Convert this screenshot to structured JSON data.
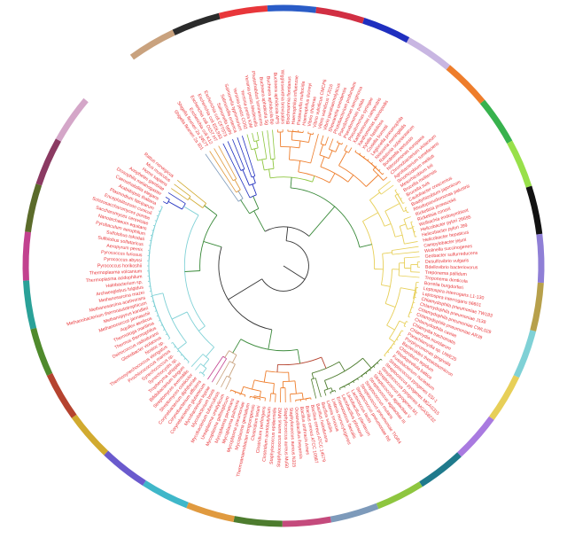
{
  "figure": {
    "type": "circular-phylogenetic-tree",
    "leaf_label_color": "#e8363a",
    "root_branch_color": "#333333",
    "leaves": [
      "Shigella flexneri 2a 301",
      "Shigella flexneri 2a 2457T",
      "Escherichia coli K12",
      "Escherichia coli O157:H7",
      "Escherichia coli EDL933",
      "Escherichia coli CFT073",
      "Salmonella typhi",
      "Salmonella enterica",
      "Salmonella typhimurium",
      "Yersinia pestis CO92",
      "Yersinia pestis KIM",
      "Yersinia pestis Medievalis",
      "Photorhabdus luminescens",
      "Buchnera aphidicola Sg",
      "Buchnera aphidicola Bp",
      "Buchnera aphidicola APS",
      "Wigglesworthia brevipalpis",
      "Blochmannia floridanus",
      "Haemophilus influenzae",
      "Pasteurella multocida",
      "Haemophilus ducreyi",
      "Vibrio cholerae",
      "Vibrio vulnificus CMCP6",
      "Vibrio vulnificus YJ016",
      "Vibrio parahaemolyticus",
      "Shewanella oneidensis",
      "Photobacterium profundum",
      "Pseudomonas aeruginosa",
      "Pseudomonas putida",
      "Pseudomonas syringae",
      "Xanthomonas campestris",
      "Xanthomonas axonopodis",
      "Xylella fastidiosa",
      "Coxiella burnetii",
      "Legionella pneumophila",
      "Neisseria meningitidis",
      "Ralstonia solanacearum",
      "Bordetella pertussis",
      "Nitrosomonas europaea",
      "Chromobacterium violaceum",
      "Agrobacterium tumefaciens",
      "Sinorhizobium meliloti",
      "Mesorhizobium loti",
      "Brucella melitensis",
      "Brucella suis",
      "Caulobacter crescentus",
      "Bradyrhizobium japonicum",
      "Rhodopseudomonas palustris",
      "Rickettsia prowazekii",
      "Rickettsia conorii",
      "Wolbachia endosymbiont",
      "Helicobacter pylori 26695",
      "Helicobacter pylori J99",
      "Helicobacter hepaticus",
      "Campylobacter jejuni",
      "Wolinella succinogenes",
      "Geobacter sulfurreducens",
      "Desulfovibrio vulgaris",
      "Bdellovibrio bacteriovorus",
      "Treponema pallidum",
      "Treponema denticola",
      "Borrelia burgdorferi",
      "Leptospira interrogans L1-130",
      "Leptospira interrogans 56601",
      "Chlamydophila pneumoniae TW183",
      "Chlamydophila pneumoniae J138",
      "Chlamydophila pneumoniae CWL029",
      "Chlamydophila pneumoniae AR39",
      "Chlamydophila caviae",
      "Chlamydia trachomatis",
      "Chlamydia muridarum",
      "Parachlamydia sp. UWE25",
      "Porphyromonas gingivalis",
      "Bacteroides thetaiotaomicron",
      "Chlorobium tepidum",
      "Rhodopirellula baltica",
      "Fusobacterium nucleatum",
      "Streptococcus pyogenes SSI-1",
      "Streptococcus pyogenes MGAS315",
      "Streptococcus pyogenes MGAS8232",
      "Streptococcus pyogenes M1",
      "Streptococcus agalactiae V",
      "Streptococcus agalactiae III",
      "Streptococcus mutans",
      "Streptococcus pneumoniae TIGR4",
      "Streptococcus pneumoniae R6",
      "Lactococcus lactis",
      "Lactobacillus plantarum",
      "Lactobacillus johnsonii",
      "Enterococcus faecalis",
      "Listeria monocytogenes",
      "Listeria innocua",
      "Bacillus subtilis",
      "Bacillus halodurans",
      "Bacillus cereus ATCC 14579",
      "Bacillus cereus ATCC 10987",
      "Bacillus anthracis Ames",
      "Oceanobacillus iheyensis",
      "Staphylococcus aureus N315",
      "Staphylococcus aureus Mu50",
      "Staphylococcus aureus MW2",
      "Staphylococcus epidermidis",
      "Clostridium acetobutylicum",
      "Clostridium perfringens",
      "Clostridium tetani",
      "Thermoanaerobacter tengcongensis",
      "Mycoplasma genitalium",
      "Mycoplasma pneumoniae",
      "Mycoplasma pulmonis",
      "Mycoplasma penetrans",
      "Mycoplasma gallisepticum",
      "Ureaplasma urealyticum",
      "Mycobacterium tuberculosis",
      "Mycobacterium bovis",
      "Mycobacterium leprae",
      "Corynebacterium glutamicum",
      "Corynebacterium efficiens",
      "Corynebacterium diphtheriae",
      "Streptomyces coelicolor",
      "Streptomyces avermitilis",
      "Bifidobacterium longum",
      "Tropheryma whipplei",
      "Synechocystis sp.",
      "Synechococcus sp.",
      "Prochlorococcus marinus",
      "Thermosynechococcus elongatus",
      "Nostoc sp.",
      "Gloeobacter violaceus",
      "Deinococcus radiodurans",
      "Thermus thermophilus",
      "Thermotoga maritima",
      "Aquifex aeolicus",
      "Methanococcus jannaschii",
      "Methanopyrus kandleri",
      "Methanobacterium thermoautotrophicum",
      "Methanosarcina acetivorans",
      "Methanosarcina mazei",
      "Archaeoglobus fulgidus",
      "Halobacterium sp.",
      "Thermoplasma acidophilum",
      "Thermoplasma volcanium",
      "Pyrococcus horikoshii",
      "Pyrococcus abyssi",
      "Pyrococcus furiosus",
      "Aeropyrum pernix",
      "Sulfolobus solfataricus",
      "Sulfolobus tokodaii",
      "Pyrobaculum aerophilum",
      "Nanoarchaeum equitans",
      "Saccharomyces cerevisiae",
      "Schizosaccharomyces pombe",
      "Encephalitozoon cuniculi",
      "Plasmodium falciparum",
      "Arabidopsis thaliana",
      "Caenorhabditis elegans",
      "Drosophila melanogaster",
      "Anopheles gambiae",
      "Homo sapiens",
      "Mus musculus",
      "Rattus norvegicus"
    ],
    "clade_colors": [
      "#c9a27e",
      "#2b2b2b",
      "#e8363a",
      "#2a5cc7",
      "#d12f43",
      "#1f2fbf",
      "#c8b6e2",
      "#ee7d2b",
      "#37b24d",
      "#98e04a",
      "#121212",
      "#8f7fd6",
      "#b7a04b",
      "#7fd1d6",
      "#e7cf58",
      "#a97ae0",
      "#1f7a8c",
      "#8ec63f",
      "#7d9aba",
      "#c44a7c",
      "#4d7c2e",
      "#e09a3f",
      "#3fb7c9",
      "#6a5acd",
      "#d1aa2f",
      "#b5432f",
      "#4f8a2c",
      "#2aa198",
      "#c2418f",
      "#5b6b2a",
      "#8b3a62",
      "#d4a6c8"
    ]
  }
}
